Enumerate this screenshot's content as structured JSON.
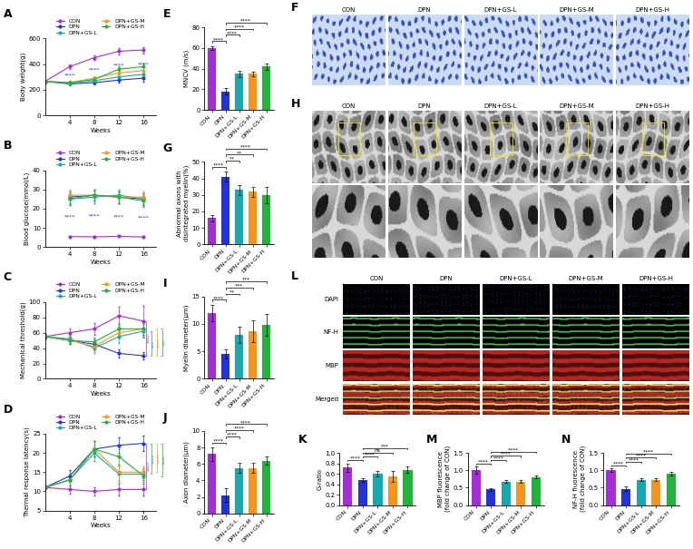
{
  "chart_data": [
    {
      "panel": "A",
      "type": "line",
      "x_label": "Weeks",
      "y_label": "Body weight(g)",
      "x": [
        0,
        4,
        8,
        12,
        16
      ],
      "xlim": [
        0,
        18
      ],
      "xticks": [
        4,
        8,
        12,
        16
      ],
      "ylim": [
        0,
        600
      ],
      "yticks": [
        0,
        200,
        400,
        600
      ],
      "legend": "above",
      "series": [
        {
          "name": "CON",
          "color": "#a42fd6",
          "values": [
            265,
            380,
            450,
            500,
            510
          ],
          "errors": [
            8,
            15,
            20,
            25,
            25
          ]
        },
        {
          "name": "DPN",
          "color": "#2233d9",
          "values": [
            265,
            245,
            255,
            275,
            290
          ],
          "errors": [
            8,
            12,
            15,
            20,
            25
          ]
        },
        {
          "name": "DPN+GS-L",
          "color": "#17a9b0",
          "values": [
            265,
            250,
            270,
            300,
            320
          ],
          "errors": [
            8,
            12,
            15,
            20,
            25
          ]
        },
        {
          "name": "DPN+GS-M",
          "color": "#f5961c",
          "values": [
            265,
            255,
            290,
            330,
            350
          ],
          "errors": [
            8,
            12,
            15,
            20,
            25
          ]
        },
        {
          "name": "DPN+GS-H",
          "color": "#22b43a",
          "values": [
            265,
            255,
            280,
            360,
            380
          ],
          "errors": [
            8,
            12,
            15,
            20,
            25
          ]
        }
      ],
      "annotations": [
        {
          "type": "label",
          "x": [
            4,
            8,
            12,
            16
          ],
          "between": [
            "CON",
            "DPN"
          ],
          "text": "****",
          "color": "#2233d9"
        }
      ]
    },
    {
      "panel": "B",
      "type": "line",
      "x_label": "Weeks",
      "y_label": "Blood glucose(mmol/L)",
      "x": [
        4,
        8,
        12,
        16
      ],
      "xlim": [
        0,
        18
      ],
      "xticks": [
        4,
        8,
        12,
        16
      ],
      "ylim": [
        0,
        40
      ],
      "yticks": [
        0,
        10,
        20,
        30,
        40
      ],
      "legend": "above",
      "series": [
        {
          "name": "CON",
          "color": "#a42fd6",
          "values": [
            5.5,
            5.3,
            5.6,
            5.2
          ],
          "errors": [
            0.5,
            0.5,
            0.5,
            0.5
          ]
        },
        {
          "name": "DPN",
          "color": "#2233d9",
          "values": [
            26,
            27,
            26,
            25
          ],
          "errors": [
            3,
            3,
            3,
            3
          ]
        },
        {
          "name": "DPN+GS-L",
          "color": "#17a9b0",
          "values": [
            25,
            26,
            27,
            25
          ],
          "errors": [
            3,
            3,
            3,
            3
          ]
        },
        {
          "name": "DPN+GS-M",
          "color": "#f5961c",
          "values": [
            27,
            27,
            26,
            26
          ],
          "errors": [
            3,
            3,
            3,
            3
          ]
        },
        {
          "name": "DPN+GS-H",
          "color": "#22b43a",
          "values": [
            25,
            27,
            26,
            24
          ],
          "errors": [
            3,
            3,
            3,
            3
          ]
        }
      ],
      "annotations": [
        {
          "type": "label",
          "x": [
            4,
            8,
            12,
            16
          ],
          "between": [
            "CON",
            "DPN"
          ],
          "text": "****",
          "color": "#2233d9"
        }
      ]
    },
    {
      "panel": "C",
      "type": "line",
      "x_label": "Weeks",
      "y_label": "Mechanical threshold(g)",
      "x": [
        0,
        4,
        8,
        12,
        16
      ],
      "xlim": [
        0,
        18
      ],
      "xticks": [
        4,
        8,
        12,
        16
      ],
      "ylim": [
        0,
        100
      ],
      "yticks": [
        0,
        20,
        40,
        60,
        80,
        100
      ],
      "legend": "above",
      "series": [
        {
          "name": "CON",
          "color": "#a42fd6",
          "values": [
            55,
            60,
            65,
            82,
            75
          ],
          "errors": [
            3,
            5,
            8,
            12,
            20
          ]
        },
        {
          "name": "DPN",
          "color": "#2233d9",
          "values": [
            55,
            50,
            45,
            33,
            30
          ],
          "errors": [
            3,
            5,
            6,
            5,
            5
          ]
        },
        {
          "name": "DPN+GS-L",
          "color": "#17a9b0",
          "values": [
            55,
            52,
            40,
            55,
            62
          ],
          "errors": [
            3,
            5,
            6,
            8,
            8
          ]
        },
        {
          "name": "DPN+GS-M",
          "color": "#f5961c",
          "values": [
            55,
            50,
            42,
            60,
            65
          ],
          "errors": [
            3,
            5,
            6,
            8,
            8
          ]
        },
        {
          "name": "DPN+GS-H",
          "color": "#22b43a",
          "values": [
            55,
            50,
            48,
            65,
            65
          ],
          "errors": [
            3,
            5,
            6,
            8,
            8
          ]
        }
      ],
      "annotations": [
        {
          "type": "bracket",
          "x": [
            16
          ],
          "between": [
            "CON",
            "DPN"
          ],
          "text": "****",
          "color": "#a42fd6"
        },
        {
          "type": "bracket",
          "x": [
            16
          ],
          "between": [
            "DPN",
            "DPN+GS-L"
          ],
          "text": "***",
          "color": "#17a9b0"
        },
        {
          "type": "bracket",
          "x": [
            16
          ],
          "between": [
            "DPN",
            "DPN+GS-M"
          ],
          "text": "****",
          "color": "#f5961c"
        },
        {
          "type": "bracket",
          "x": [
            16
          ],
          "between": [
            "DPN",
            "DPN+GS-H"
          ],
          "text": "***",
          "color": "#22b43a"
        }
      ]
    },
    {
      "panel": "D",
      "type": "line",
      "x_label": "Weeks",
      "y_label": "Thermal response latency(s)",
      "x": [
        0,
        4,
        8,
        12,
        16
      ],
      "xlim": [
        0,
        18
      ],
      "xticks": [
        4,
        8,
        12,
        16
      ],
      "ylim": [
        5,
        25
      ],
      "yticks": [
        5,
        10,
        15,
        20,
        25
      ],
      "legend": "above",
      "series": [
        {
          "name": "CON",
          "color": "#a42fd6",
          "values": [
            11,
            10.5,
            10,
            10.5,
            10.5
          ],
          "errors": [
            0.5,
            1,
            1,
            1.5,
            1.5
          ]
        },
        {
          "name": "DPN",
          "color": "#2233d9",
          "values": [
            11,
            14,
            21,
            22,
            22.5
          ],
          "errors": [
            0.5,
            1.5,
            2,
            2,
            2
          ]
        },
        {
          "name": "DPN+GS-L",
          "color": "#17a9b0",
          "values": [
            11,
            13,
            20,
            14.5,
            14.5
          ],
          "errors": [
            0.5,
            1.5,
            2,
            2,
            1.5
          ]
        },
        {
          "name": "DPN+GS-M",
          "color": "#f5961c",
          "values": [
            11,
            13,
            21,
            15,
            15
          ],
          "errors": [
            0.5,
            1.5,
            2,
            2,
            1.5
          ]
        },
        {
          "name": "DPN+GS-H",
          "color": "#22b43a",
          "values": [
            11,
            13,
            21,
            19,
            14
          ],
          "errors": [
            0.5,
            1.5,
            2,
            2,
            1.5
          ]
        }
      ],
      "annotations": [
        {
          "type": "bracket",
          "x": [
            16
          ],
          "between": [
            "CON",
            "DPN"
          ],
          "text": "****",
          "color": "#a42fd6"
        },
        {
          "type": "bracket",
          "x": [
            16
          ],
          "between": [
            "DPN",
            "DPN+GS-L"
          ],
          "text": "****",
          "color": "#17a9b0"
        },
        {
          "type": "bracket",
          "x": [
            16
          ],
          "between": [
            "DPN",
            "DPN+GS-M"
          ],
          "text": "****",
          "color": "#f5961c"
        },
        {
          "type": "bracket",
          "x": [
            16
          ],
          "between": [
            "DPN",
            "DPN+GS-H"
          ],
          "text": "****",
          "color": "#22b43a"
        }
      ]
    },
    {
      "panel": "E",
      "type": "bar",
      "y_label": "MNCV (m/s)",
      "categories": [
        "CON",
        "DPN",
        "DPN+GS-L",
        "DPN+GS-M",
        "DPN+GS-H"
      ],
      "values": [
        60,
        18,
        35,
        35,
        42
      ],
      "errors": [
        2,
        3,
        3,
        2,
        3
      ],
      "colors": [
        "#a42fd6",
        "#2233d9",
        "#17a9b0",
        "#f5961c",
        "#22b43a"
      ],
      "ylim": [
        0,
        80
      ],
      "yticks": [
        0,
        20,
        40,
        60,
        80
      ],
      "comparisons": [
        {
          "from": "CON",
          "to": "DPN",
          "text": "****"
        },
        {
          "from": "DPN",
          "to": "DPN+GS-L",
          "text": "****"
        },
        {
          "from": "DPN",
          "to": "DPN+GS-M",
          "text": "****"
        },
        {
          "from": "DPN",
          "to": "DPN+GS-H",
          "text": "****"
        }
      ]
    },
    {
      "panel": "G",
      "type": "bar",
      "y_label": "Abnormal axons with\ndisintegrated myelin(%)",
      "categories": [
        "CON",
        "DPN",
        "DPN+GS-L",
        "DPN+GS-M",
        "DPN+GS-H"
      ],
      "values": [
        16,
        41,
        33,
        32,
        30
      ],
      "errors": [
        2,
        3,
        3,
        3,
        5
      ],
      "colors": [
        "#a42fd6",
        "#2233d9",
        "#17a9b0",
        "#f5961c",
        "#22b43a"
      ],
      "ylim": [
        0,
        50
      ],
      "yticks": [
        0,
        10,
        20,
        30,
        40,
        50
      ],
      "comparisons": [
        {
          "from": "CON",
          "to": "DPN",
          "text": "****"
        },
        {
          "from": "DPN",
          "to": "DPN+GS-L",
          "text": "**"
        },
        {
          "from": "DPN",
          "to": "DPN+GS-M",
          "text": "**"
        },
        {
          "from": "DPN",
          "to": "DPN+GS-H",
          "text": "****"
        }
      ]
    },
    {
      "panel": "I",
      "type": "bar",
      "y_label": "Myelin diameter(μm)",
      "categories": [
        "CON",
        "DPN",
        "DPN+GS-L",
        "DPN+GS-M",
        "DPN+GS-H"
      ],
      "values": [
        12,
        4.5,
        8,
        8.7,
        9.8
      ],
      "errors": [
        1.5,
        0.8,
        1.5,
        2,
        2
      ],
      "colors": [
        "#a42fd6",
        "#2233d9",
        "#17a9b0",
        "#f5961c",
        "#22b43a"
      ],
      "ylim": [
        0,
        15
      ],
      "yticks": [
        0,
        5,
        10,
        15
      ],
      "comparisons": [
        {
          "from": "CON",
          "to": "DPN",
          "text": "****"
        },
        {
          "from": "DPN",
          "to": "DPN+GS-L",
          "text": "**"
        },
        {
          "from": "DPN",
          "to": "DPN+GS-M",
          "text": "***"
        },
        {
          "from": "DPN",
          "to": "DPN+GS-H",
          "text": "***"
        }
      ]
    },
    {
      "panel": "J",
      "type": "bar",
      "y_label": "Axon diameter(μm)",
      "categories": [
        "CON",
        "DPN",
        "DPN+GS-L",
        "DPN+GS-M",
        "DPN+GS-H"
      ],
      "values": [
        7.2,
        2.2,
        5.5,
        5.5,
        6.4
      ],
      "errors": [
        0.8,
        0.8,
        0.6,
        0.6,
        0.5
      ],
      "colors": [
        "#a42fd6",
        "#2233d9",
        "#17a9b0",
        "#f5961c",
        "#22b43a"
      ],
      "ylim": [
        0,
        10
      ],
      "yticks": [
        0,
        2,
        4,
        6,
        8,
        10
      ],
      "comparisons": [
        {
          "from": "CON",
          "to": "DPN",
          "text": "****"
        },
        {
          "from": "DPN",
          "to": "DPN+GS-L",
          "text": "****"
        },
        {
          "from": "DPN",
          "to": "DPN+GS-M",
          "text": "****"
        },
        {
          "from": "DPN",
          "to": "DPN+GS-H",
          "text": "****"
        }
      ]
    },
    {
      "panel": "F",
      "type": "light_micrograph",
      "columns": [
        "CON",
        "DPN",
        "DPN+GS-L",
        "DPN+GS-M",
        "DPN+GS-H"
      ]
    },
    {
      "panel": "H",
      "type": "electron_micrograph",
      "columns": [
        "CON",
        "DPN",
        "DPN+GS-L",
        "DPN+GS-M",
        "DPN+GS-H"
      ]
    },
    {
      "panel": "L",
      "type": "fluorescence",
      "columns": [
        "CON",
        "DPN",
        "DPN+GS-L",
        "DPN+GS-M",
        "DPN+GS-H"
      ],
      "row_labels": [
        "DAPI",
        "NF-H",
        "MBP",
        "Merged"
      ],
      "colors": [
        "#3a5cff",
        "#39e84a",
        "#e0302a"
      ]
    },
    {
      "panel": "K",
      "type": "bar",
      "y_label": "G-ratio",
      "categories": [
        "CON",
        "DPN",
        "DPN+GS-L",
        "DPN+GS-M",
        "DPN+GS-H"
      ],
      "values": [
        0.72,
        0.48,
        0.6,
        0.55,
        0.68
      ],
      "errors": [
        0.08,
        0.04,
        0.05,
        0.1,
        0.06
      ],
      "colors": [
        "#a42fd6",
        "#2233d9",
        "#17a9b0",
        "#f5961c",
        "#22b43a"
      ],
      "ylim": [
        0.0,
        1.0
      ],
      "yticks": [
        0.0,
        0.2,
        0.4,
        0.6,
        0.8,
        1.0
      ],
      "comparisons": [
        {
          "from": "CON",
          "to": "DPN",
          "text": "****"
        },
        {
          "from": "DPN",
          "to": "DPN+GS-L",
          "text": "****"
        },
        {
          "from": "DPN",
          "to": "DPN+GS-M",
          "text": "ns"
        },
        {
          "from": "DPN",
          "to": "DPN+GS-H",
          "text": "***"
        }
      ]
    },
    {
      "panel": "M",
      "type": "bar",
      "y_label": "MBP fluorescence\n(fold change of CON)",
      "categories": [
        "CON",
        "DPN",
        "DPN+GS-L",
        "DPN+GS-M",
        "DPN+GS-H"
      ],
      "values": [
        1.0,
        0.45,
        0.68,
        0.68,
        0.8
      ],
      "errors": [
        0.1,
        0.04,
        0.04,
        0.05,
        0.04
      ],
      "colors": [
        "#a42fd6",
        "#2233d9",
        "#17a9b0",
        "#f5961c",
        "#22b43a"
      ],
      "ylim": [
        0.0,
        1.5
      ],
      "yticks": [
        0.0,
        0.5,
        1.0,
        1.5
      ],
      "comparisons": [
        {
          "from": "CON",
          "to": "DPN",
          "text": "****"
        },
        {
          "from": "DPN",
          "to": "DPN+GS-L",
          "text": "****"
        },
        {
          "from": "DPN",
          "to": "DPN+GS-M",
          "text": "****"
        },
        {
          "from": "DPN",
          "to": "DPN+GS-H",
          "text": "****"
        }
      ]
    },
    {
      "panel": "N",
      "type": "bar",
      "y_label": "NF-H fluorescence\n(fold change of CON)",
      "categories": [
        "CON",
        "DPN",
        "DPN+GS-L",
        "DPN+GS-M",
        "DPN+GS-H"
      ],
      "values": [
        1.0,
        0.47,
        0.73,
        0.73,
        0.9
      ],
      "errors": [
        0.05,
        0.06,
        0.04,
        0.04,
        0.06
      ],
      "colors": [
        "#a42fd6",
        "#2233d9",
        "#17a9b0",
        "#f5961c",
        "#22b43a"
      ],
      "ylim": [
        0.0,
        1.5
      ],
      "yticks": [
        0.0,
        0.5,
        1.0,
        1.5
      ],
      "comparisons": [
        {
          "from": "CON",
          "to": "DPN",
          "text": "****"
        },
        {
          "from": "DPN",
          "to": "DPN+GS-L",
          "text": "****"
        },
        {
          "from": "DPN",
          "to": "DPN+GS-M",
          "text": "****"
        },
        {
          "from": "DPN",
          "to": "DPN+GS-H",
          "text": "****"
        }
      ]
    }
  ]
}
